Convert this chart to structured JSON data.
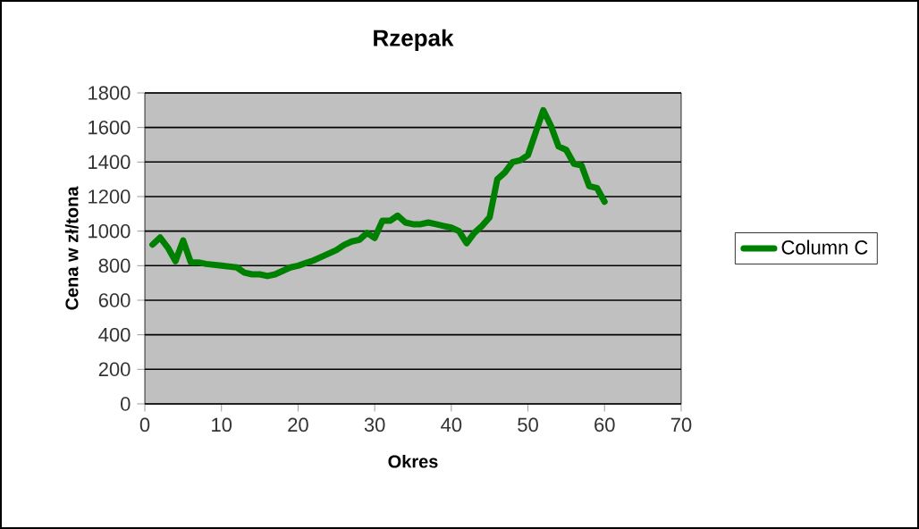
{
  "chart_data": {
    "type": "line",
    "title": "Rzepak",
    "xlabel": "Okres",
    "ylabel": "Cena w zł/tona",
    "x": [
      1,
      2,
      3,
      4,
      5,
      6,
      7,
      8,
      10,
      12,
      13,
      14,
      15,
      16,
      17,
      18,
      19,
      20,
      21,
      22,
      23,
      24,
      25,
      26,
      27,
      28,
      29,
      30,
      31,
      32,
      33,
      34,
      35,
      36,
      37,
      38,
      39,
      40,
      41,
      42,
      43,
      44,
      45,
      46,
      47,
      48,
      49,
      50,
      51,
      52,
      53,
      54,
      55,
      56,
      57,
      58,
      59,
      60
    ],
    "series": [
      {
        "name": "Column C",
        "color": "#008000",
        "values": [
          922,
          963,
          905,
          826,
          946,
          819,
          819,
          810,
          800,
          790,
          760,
          750,
          750,
          740,
          750,
          770,
          790,
          800,
          815,
          830,
          850,
          870,
          890,
          920,
          940,
          950,
          990,
          960,
          1060,
          1060,
          1090,
          1050,
          1040,
          1040,
          1050,
          1040,
          1030,
          1020,
          1000,
          930,
          990,
          1030,
          1080,
          1300,
          1340,
          1400,
          1410,
          1440,
          1570,
          1700,
          1610,
          1490,
          1470,
          1390,
          1380,
          1260,
          1250,
          1170
        ]
      }
    ],
    "xlim": [
      0,
      70
    ],
    "xticks": [
      0,
      10,
      20,
      30,
      40,
      50,
      60,
      70
    ],
    "ylim": [
      0,
      1800
    ],
    "yticks": [
      0,
      200,
      400,
      600,
      800,
      1000,
      1200,
      1400,
      1600,
      1800
    ],
    "grid": "y",
    "legend": "right"
  }
}
